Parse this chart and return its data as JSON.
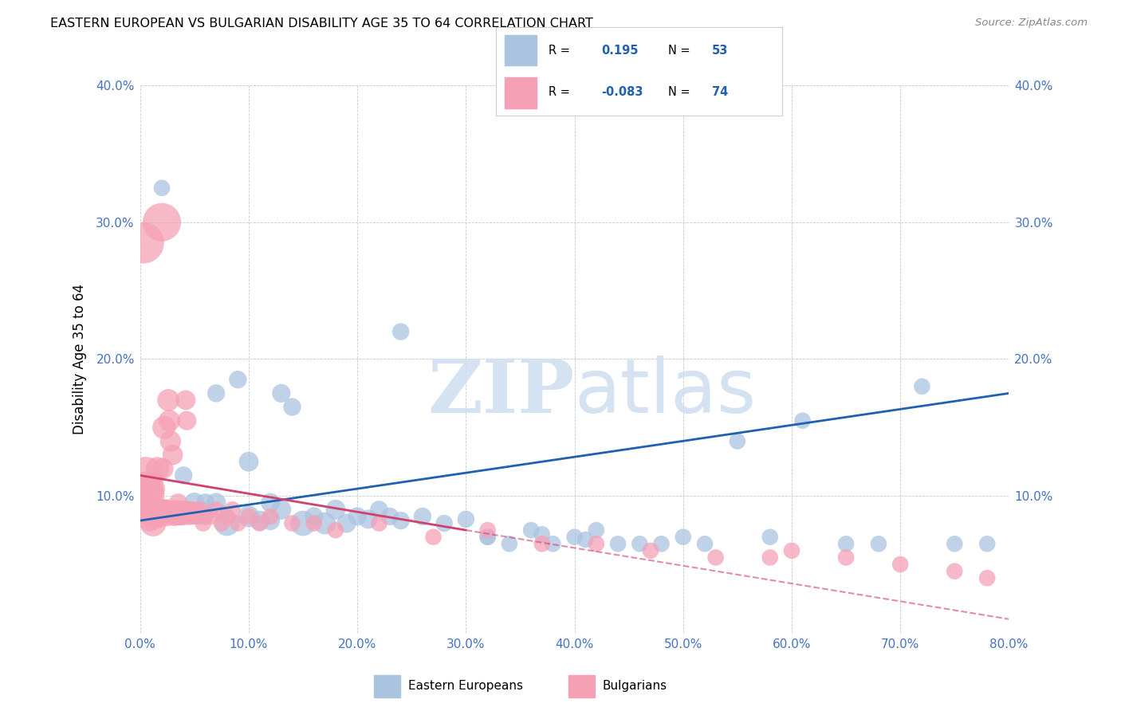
{
  "title": "EASTERN EUROPEAN VS BULGARIAN DISABILITY AGE 35 TO 64 CORRELATION CHART",
  "source": "Source: ZipAtlas.com",
  "ylabel": "Disability Age 35 to 64",
  "xlim": [
    0,
    0.8
  ],
  "ylim": [
    0,
    0.4
  ],
  "xticks": [
    0.0,
    0.1,
    0.2,
    0.3,
    0.4,
    0.5,
    0.6,
    0.7,
    0.8
  ],
  "yticks": [
    0.0,
    0.1,
    0.2,
    0.3,
    0.4
  ],
  "blue_R": 0.195,
  "blue_N": 53,
  "pink_R": -0.083,
  "pink_N": 74,
  "blue_color": "#aac4df",
  "pink_color": "#f5a0b5",
  "blue_line_color": "#2060b0",
  "pink_line_color": "#d04070",
  "watermark_color": "#d0dff0",
  "legend_label_blue": "Eastern Europeans",
  "legend_label_pink": "Bulgarians",
  "tick_color": "#4472c4",
  "blue_scatter_x": [
    0.02,
    0.04,
    0.05,
    0.06,
    0.06,
    0.07,
    0.07,
    0.08,
    0.09,
    0.1,
    0.1,
    0.11,
    0.12,
    0.12,
    0.13,
    0.13,
    0.14,
    0.15,
    0.16,
    0.17,
    0.18,
    0.19,
    0.2,
    0.21,
    0.22,
    0.23,
    0.24,
    0.26,
    0.28,
    0.3,
    0.32,
    0.34,
    0.36,
    0.38,
    0.4,
    0.42,
    0.44,
    0.46,
    0.48,
    0.5,
    0.52,
    0.55,
    0.58,
    0.61,
    0.65,
    0.68,
    0.72,
    0.75,
    0.78,
    0.24,
    0.32,
    0.37,
    0.41
  ],
  "blue_scatter_y": [
    0.325,
    0.115,
    0.095,
    0.085,
    0.095,
    0.175,
    0.095,
    0.08,
    0.185,
    0.125,
    0.085,
    0.082,
    0.095,
    0.082,
    0.175,
    0.09,
    0.165,
    0.08,
    0.085,
    0.08,
    0.09,
    0.08,
    0.085,
    0.083,
    0.09,
    0.085,
    0.082,
    0.085,
    0.08,
    0.083,
    0.07,
    0.065,
    0.075,
    0.065,
    0.07,
    0.075,
    0.065,
    0.065,
    0.065,
    0.07,
    0.065,
    0.14,
    0.07,
    0.155,
    0.065,
    0.065,
    0.18,
    0.065,
    0.065,
    0.22,
    0.07,
    0.072,
    0.068
  ],
  "blue_scatter_size": [
    55,
    65,
    85,
    60,
    70,
    65,
    80,
    130,
    65,
    80,
    95,
    80,
    75,
    75,
    70,
    80,
    65,
    130,
    70,
    100,
    80,
    75,
    70,
    75,
    65,
    65,
    65,
    65,
    60,
    60,
    55,
    55,
    55,
    55,
    55,
    55,
    55,
    55,
    55,
    55,
    55,
    55,
    55,
    55,
    55,
    55,
    55,
    55,
    55,
    60,
    55,
    55,
    55
  ],
  "pink_scatter_x": [
    0.003,
    0.005,
    0.005,
    0.007,
    0.008,
    0.009,
    0.01,
    0.011,
    0.012,
    0.013,
    0.014,
    0.015,
    0.016,
    0.017,
    0.018,
    0.019,
    0.02,
    0.021,
    0.022,
    0.023,
    0.024,
    0.025,
    0.026,
    0.027,
    0.028,
    0.03,
    0.031,
    0.032,
    0.033,
    0.034,
    0.035,
    0.036,
    0.037,
    0.038,
    0.039,
    0.04,
    0.041,
    0.042,
    0.043,
    0.044,
    0.045,
    0.046,
    0.048,
    0.05,
    0.052,
    0.054,
    0.056,
    0.058,
    0.06,
    0.065,
    0.07,
    0.075,
    0.08,
    0.085,
    0.09,
    0.1,
    0.11,
    0.12,
    0.14,
    0.16,
    0.18,
    0.22,
    0.27,
    0.32,
    0.37,
    0.42,
    0.47,
    0.53,
    0.58,
    0.6,
    0.65,
    0.7,
    0.75,
    0.78
  ],
  "pink_scatter_y": [
    0.285,
    0.115,
    0.105,
    0.1,
    0.09,
    0.085,
    0.105,
    0.09,
    0.08,
    0.085,
    0.09,
    0.085,
    0.12,
    0.09,
    0.085,
    0.09,
    0.3,
    0.12,
    0.15,
    0.09,
    0.085,
    0.09,
    0.17,
    0.155,
    0.14,
    0.13,
    0.085,
    0.09,
    0.085,
    0.09,
    0.095,
    0.085,
    0.09,
    0.085,
    0.09,
    0.085,
    0.09,
    0.17,
    0.155,
    0.085,
    0.09,
    0.085,
    0.09,
    0.085,
    0.09,
    0.085,
    0.09,
    0.08,
    0.085,
    0.085,
    0.09,
    0.08,
    0.085,
    0.09,
    0.08,
    0.085,
    0.08,
    0.085,
    0.08,
    0.08,
    0.075,
    0.08,
    0.07,
    0.075,
    0.065,
    0.065,
    0.06,
    0.055,
    0.055,
    0.06,
    0.055,
    0.05,
    0.045,
    0.04
  ],
  "pink_scatter_size": [
    350,
    280,
    250,
    230,
    200,
    180,
    160,
    150,
    140,
    130,
    120,
    115,
    110,
    105,
    100,
    95,
    300,
    90,
    110,
    85,
    80,
    85,
    100,
    95,
    90,
    85,
    75,
    75,
    70,
    70,
    70,
    65,
    65,
    65,
    65,
    60,
    60,
    80,
    75,
    60,
    60,
    58,
    58,
    55,
    55,
    55,
    55,
    55,
    55,
    55,
    55,
    55,
    55,
    55,
    55,
    55,
    55,
    55,
    55,
    55,
    55,
    55,
    55,
    55,
    55,
    55,
    55,
    55,
    55,
    55,
    55,
    55,
    55,
    55
  ],
  "blue_line_x0": 0.0,
  "blue_line_x1": 0.8,
  "blue_line_y0": 0.082,
  "blue_line_y1": 0.175,
  "pink_line_solid_x0": 0.0,
  "pink_line_solid_x1": 0.3,
  "pink_line_y0": 0.115,
  "pink_line_y1": 0.075,
  "pink_line_dash_x0": 0.3,
  "pink_line_dash_x1": 0.8,
  "pink_line_dash_y0": 0.075,
  "pink_line_dash_y1": 0.01
}
